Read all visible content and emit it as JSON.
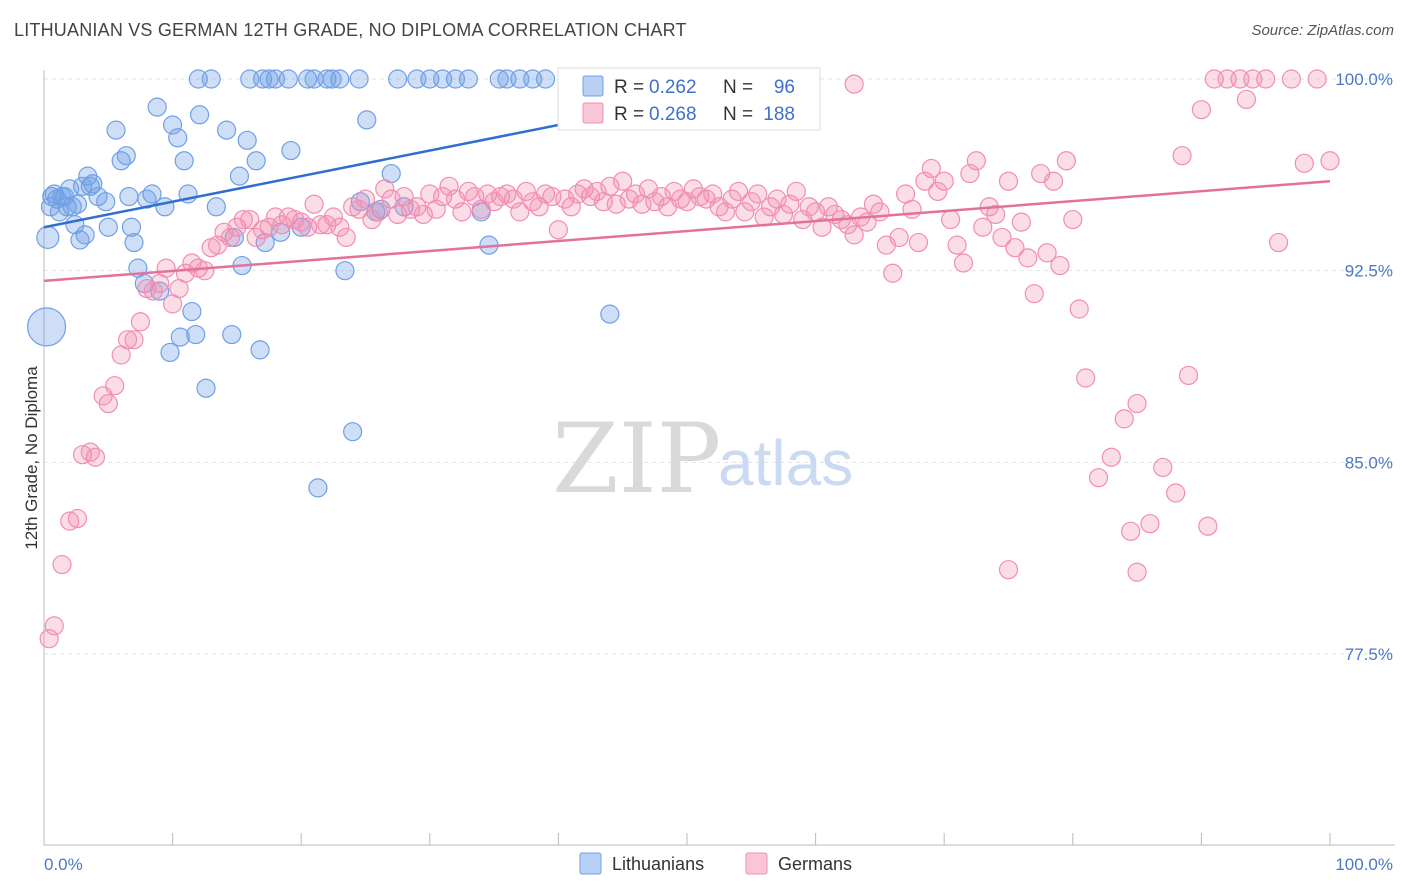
{
  "title": "LITHUANIAN VS GERMAN 12TH GRADE, NO DIPLOMA CORRELATION CHART",
  "source": "Source: ZipAtlas.com",
  "watermark": {
    "zip": "ZIP",
    "atlas": "atlas"
  },
  "colors": {
    "lithuanians": "#6fa0e6",
    "lithuanians_line": "#2e6fd0",
    "germans": "#f28db1",
    "germans_line": "#e3719c",
    "tick_text": "#4a78c8"
  },
  "legend": {
    "rows": [
      {
        "r_label": "R =",
        "r_value": "0.262",
        "n_label": "N =",
        "n_value": "96"
      },
      {
        "r_label": "R =",
        "r_value": "0.268",
        "n_label": "N =",
        "n_value": "188"
      }
    ]
  },
  "chart_data": {
    "type": "scatter",
    "title": "LITHUANIAN VS GERMAN 12TH GRADE, NO DIPLOMA CORRELATION CHART",
    "xlabel": "",
    "ylabel": "12th Grade, No Diploma",
    "xlim": [
      0,
      100
    ],
    "ylim": [
      70,
      101
    ],
    "x_tick_labels": [
      "0.0%",
      "100.0%"
    ],
    "y_ticks": [
      77.5,
      85.0,
      92.5,
      100.0
    ],
    "y_tick_labels": [
      "77.5%",
      "85.0%",
      "92.5%",
      "100.0%"
    ],
    "grid": true,
    "legend_position": "top-center",
    "series": [
      {
        "name": "Lithuanians",
        "r": 0.262,
        "n": 96,
        "trend": {
          "x": [
            0,
            40
          ],
          "y": [
            94.2,
            98.2
          ]
        },
        "points": [
          [
            0.2,
            90.3
          ],
          [
            0.3,
            93.8
          ],
          [
            0.5,
            95.0
          ],
          [
            0.6,
            95.4
          ],
          [
            0.8,
            95.5
          ],
          [
            1.0,
            95.3
          ],
          [
            1.2,
            94.8
          ],
          [
            1.4,
            95.4
          ],
          [
            1.6,
            95.4
          ],
          [
            1.8,
            95.0
          ],
          [
            2.0,
            95.7
          ],
          [
            2.2,
            95.0
          ],
          [
            2.4,
            94.3
          ],
          [
            2.6,
            95.1
          ],
          [
            2.8,
            93.7
          ],
          [
            3.0,
            95.8
          ],
          [
            3.4,
            96.2
          ],
          [
            3.6,
            95.8
          ],
          [
            3.8,
            95.9
          ],
          [
            4.2,
            95.4
          ],
          [
            4.8,
            95.2
          ],
          [
            5.0,
            94.2
          ],
          [
            5.6,
            98.0
          ],
          [
            6.0,
            96.8
          ],
          [
            6.4,
            97.0
          ],
          [
            6.6,
            95.4
          ],
          [
            6.8,
            94.2
          ],
          [
            7.0,
            93.6
          ],
          [
            7.3,
            92.6
          ],
          [
            7.8,
            92.0
          ],
          [
            8.0,
            95.3
          ],
          [
            8.4,
            95.5
          ],
          [
            8.8,
            98.9
          ],
          [
            9.0,
            91.7
          ],
          [
            9.4,
            95.0
          ],
          [
            9.8,
            89.3
          ],
          [
            10.0,
            98.2
          ],
          [
            10.4,
            97.7
          ],
          [
            10.6,
            89.9
          ],
          [
            10.9,
            96.8
          ],
          [
            11.2,
            95.5
          ],
          [
            11.5,
            90.9
          ],
          [
            11.8,
            90.0
          ],
          [
            12.1,
            98.6
          ],
          [
            12.6,
            87.9
          ],
          [
            13.4,
            95.0
          ],
          [
            14.2,
            98.0
          ],
          [
            14.6,
            90.0
          ],
          [
            14.8,
            93.8
          ],
          [
            15.2,
            96.2
          ],
          [
            15.4,
            92.7
          ],
          [
            15.8,
            97.6
          ],
          [
            16.5,
            96.8
          ],
          [
            16.8,
            89.4
          ],
          [
            17.2,
            93.6
          ],
          [
            18.4,
            94.0
          ],
          [
            19.2,
            97.2
          ],
          [
            20.0,
            94.2
          ],
          [
            21.3,
            84.0
          ],
          [
            22.0,
            100.0
          ],
          [
            22.4,
            100.0
          ],
          [
            23.4,
            92.5
          ],
          [
            24.0,
            86.2
          ],
          [
            24.6,
            95.2
          ],
          [
            25.1,
            98.4
          ],
          [
            25.8,
            94.8
          ],
          [
            26.2,
            94.9
          ],
          [
            27.0,
            96.3
          ],
          [
            28.0,
            95.0
          ],
          [
            29.0,
            100.0
          ],
          [
            30.0,
            100.0
          ],
          [
            31.0,
            100.0
          ],
          [
            34.0,
            94.8
          ],
          [
            34.6,
            93.5
          ],
          [
            35.4,
            100.0
          ],
          [
            36.0,
            100.0
          ],
          [
            39.0,
            100.0
          ],
          [
            44.0,
            90.8
          ],
          [
            48.0,
            100.0
          ],
          [
            12.0,
            100.0
          ],
          [
            13.0,
            100.0
          ],
          [
            16.0,
            100.0
          ],
          [
            17.0,
            100.0
          ],
          [
            17.5,
            100.0
          ],
          [
            18.0,
            100.0
          ],
          [
            19.0,
            100.0
          ],
          [
            20.5,
            100.0
          ],
          [
            21.0,
            100.0
          ],
          [
            23.0,
            100.0
          ],
          [
            24.5,
            100.0
          ],
          [
            27.5,
            100.0
          ],
          [
            32.0,
            100.0
          ],
          [
            33.0,
            100.0
          ],
          [
            37.0,
            100.0
          ],
          [
            38.0,
            100.0
          ],
          [
            3.2,
            93.9
          ]
        ]
      },
      {
        "name": "Germans",
        "r": 0.268,
        "n": 188,
        "trend": {
          "x": [
            0,
            100
          ],
          "y": [
            92.1,
            96.0
          ]
        },
        "points": [
          [
            0.4,
            78.1
          ],
          [
            0.8,
            78.6
          ],
          [
            1.4,
            81.0
          ],
          [
            2.0,
            82.7
          ],
          [
            2.6,
            82.8
          ],
          [
            3.0,
            85.3
          ],
          [
            3.6,
            85.4
          ],
          [
            4.0,
            85.2
          ],
          [
            4.6,
            87.6
          ],
          [
            5.0,
            87.3
          ],
          [
            5.5,
            88.0
          ],
          [
            6.0,
            89.2
          ],
          [
            6.5,
            89.8
          ],
          [
            7.0,
            89.8
          ],
          [
            7.5,
            90.5
          ],
          [
            8.0,
            91.8
          ],
          [
            8.5,
            91.7
          ],
          [
            9.0,
            92.0
          ],
          [
            9.5,
            92.6
          ],
          [
            10.0,
            91.2
          ],
          [
            10.5,
            91.8
          ],
          [
            11.0,
            92.4
          ],
          [
            11.5,
            92.8
          ],
          [
            12.0,
            92.6
          ],
          [
            12.5,
            92.5
          ],
          [
            13.0,
            93.4
          ],
          [
            13.5,
            93.5
          ],
          [
            14.0,
            94.0
          ],
          [
            14.5,
            93.8
          ],
          [
            15.0,
            94.2
          ],
          [
            15.5,
            94.5
          ],
          [
            16.0,
            94.5
          ],
          [
            16.5,
            93.8
          ],
          [
            17.0,
            94.1
          ],
          [
            17.5,
            94.2
          ],
          [
            18.0,
            94.6
          ],
          [
            18.5,
            94.3
          ],
          [
            19.0,
            94.6
          ],
          [
            19.5,
            94.5
          ],
          [
            20.0,
            94.4
          ],
          [
            20.5,
            94.2
          ],
          [
            21.0,
            95.1
          ],
          [
            21.5,
            94.3
          ],
          [
            22.0,
            94.3
          ],
          [
            22.5,
            94.6
          ],
          [
            23.0,
            94.2
          ],
          [
            23.5,
            93.8
          ],
          [
            24.0,
            95.0
          ],
          [
            24.5,
            94.9
          ],
          [
            25.0,
            95.3
          ],
          [
            25.5,
            94.5
          ],
          [
            26.0,
            94.8
          ],
          [
            26.5,
            95.7
          ],
          [
            27.0,
            95.3
          ],
          [
            27.5,
            94.7
          ],
          [
            28.0,
            95.4
          ],
          [
            28.5,
            94.9
          ],
          [
            29.0,
            95.0
          ],
          [
            29.5,
            94.7
          ],
          [
            30.0,
            95.5
          ],
          [
            30.5,
            94.9
          ],
          [
            31.0,
            95.4
          ],
          [
            31.5,
            95.8
          ],
          [
            32.0,
            95.3
          ],
          [
            32.5,
            94.8
          ],
          [
            33.0,
            95.6
          ],
          [
            33.5,
            95.4
          ],
          [
            34.0,
            94.9
          ],
          [
            34.5,
            95.5
          ],
          [
            35.0,
            95.2
          ],
          [
            35.5,
            95.4
          ],
          [
            36.0,
            95.5
          ],
          [
            36.5,
            95.3
          ],
          [
            37.0,
            94.8
          ],
          [
            37.5,
            95.6
          ],
          [
            38.0,
            95.2
          ],
          [
            38.5,
            95.0
          ],
          [
            39.0,
            95.5
          ],
          [
            39.5,
            95.4
          ],
          [
            40.0,
            94.1
          ],
          [
            40.5,
            95.3
          ],
          [
            41.0,
            95.0
          ],
          [
            41.5,
            95.5
          ],
          [
            42.0,
            95.7
          ],
          [
            42.5,
            95.4
          ],
          [
            43.0,
            95.6
          ],
          [
            43.5,
            95.2
          ],
          [
            44.0,
            95.8
          ],
          [
            44.5,
            95.1
          ],
          [
            45.0,
            96.0
          ],
          [
            45.5,
            95.3
          ],
          [
            46.0,
            95.5
          ],
          [
            46.5,
            95.1
          ],
          [
            47.0,
            95.7
          ],
          [
            47.5,
            95.2
          ],
          [
            48.0,
            95.4
          ],
          [
            48.5,
            95.0
          ],
          [
            49.0,
            95.6
          ],
          [
            49.5,
            95.3
          ],
          [
            50.0,
            95.2
          ],
          [
            50.5,
            95.7
          ],
          [
            51.0,
            95.4
          ],
          [
            51.5,
            95.3
          ],
          [
            52.0,
            95.5
          ],
          [
            52.5,
            95.0
          ],
          [
            53.0,
            94.8
          ],
          [
            53.5,
            95.3
          ],
          [
            54.0,
            95.6
          ],
          [
            54.5,
            94.8
          ],
          [
            55.0,
            95.2
          ],
          [
            55.5,
            95.5
          ],
          [
            56.0,
            94.6
          ],
          [
            56.5,
            95.0
          ],
          [
            57.0,
            95.3
          ],
          [
            57.5,
            94.7
          ],
          [
            58.0,
            95.1
          ],
          [
            58.5,
            95.6
          ],
          [
            59.0,
            94.5
          ],
          [
            59.5,
            95.0
          ],
          [
            60.0,
            94.8
          ],
          [
            60.5,
            94.2
          ],
          [
            61.0,
            95.0
          ],
          [
            61.5,
            94.7
          ],
          [
            62.0,
            94.5
          ],
          [
            62.5,
            94.3
          ],
          [
            63.0,
            93.9
          ],
          [
            63.5,
            94.6
          ],
          [
            64.0,
            94.4
          ],
          [
            64.5,
            95.1
          ],
          [
            65.0,
            94.8
          ],
          [
            65.5,
            93.5
          ],
          [
            66.0,
            92.4
          ],
          [
            66.5,
            93.8
          ],
          [
            67.0,
            95.5
          ],
          [
            67.5,
            94.9
          ],
          [
            68.0,
            93.6
          ],
          [
            68.5,
            96.0
          ],
          [
            69.0,
            96.5
          ],
          [
            69.5,
            95.6
          ],
          [
            70.0,
            96.0
          ],
          [
            70.5,
            94.5
          ],
          [
            71.0,
            93.5
          ],
          [
            71.5,
            92.8
          ],
          [
            72.0,
            96.3
          ],
          [
            72.5,
            96.8
          ],
          [
            73.0,
            94.2
          ],
          [
            73.5,
            95.0
          ],
          [
            74.0,
            94.7
          ],
          [
            74.5,
            93.8
          ],
          [
            75.0,
            96.0
          ],
          [
            75.5,
            93.4
          ],
          [
            76.0,
            94.4
          ],
          [
            76.5,
            93.0
          ],
          [
            77.0,
            91.6
          ],
          [
            77.5,
            96.3
          ],
          [
            78.0,
            93.2
          ],
          [
            78.5,
            96.0
          ],
          [
            79.0,
            92.7
          ],
          [
            79.5,
            96.8
          ],
          [
            80.0,
            94.5
          ],
          [
            80.5,
            91.0
          ],
          [
            81.0,
            88.3
          ],
          [
            82.0,
            84.4
          ],
          [
            83.0,
            85.2
          ],
          [
            84.0,
            86.7
          ],
          [
            85.0,
            87.3
          ],
          [
            86.0,
            82.6
          ],
          [
            87.0,
            84.8
          ],
          [
            88.0,
            83.8
          ],
          [
            89.0,
            88.4
          ],
          [
            90.0,
            98.8
          ],
          [
            91.0,
            100.0
          ],
          [
            92.0,
            100.0
          ],
          [
            93.0,
            100.0
          ],
          [
            94.0,
            100.0
          ],
          [
            95.0,
            100.0
          ],
          [
            96.0,
            93.6
          ],
          [
            97.0,
            100.0
          ],
          [
            98.0,
            96.7
          ],
          [
            99.0,
            100.0
          ],
          [
            75.0,
            80.8
          ],
          [
            85.0,
            80.7
          ],
          [
            84.5,
            82.3
          ],
          [
            90.5,
            82.5
          ],
          [
            93.5,
            99.2
          ],
          [
            88.5,
            97.0
          ],
          [
            63.0,
            99.8
          ],
          [
            100.0,
            96.8
          ]
        ]
      }
    ]
  },
  "bottom_legend": [
    {
      "label": "Lithuanians"
    },
    {
      "label": "Germans"
    }
  ]
}
